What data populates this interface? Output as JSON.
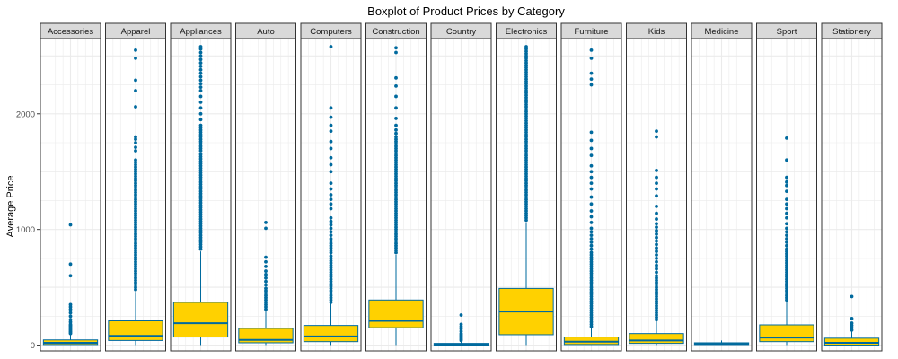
{
  "chart_data": {
    "type": "boxplot",
    "title": "Boxplot of Product Prices by Category",
    "xlabel": "",
    "ylabel": "Average Price",
    "ylim": [
      -50,
      2650
    ],
    "yticks": [
      0,
      1000,
      2000
    ],
    "grid": true,
    "facet_by": "category",
    "colors": {
      "box_fill": "#FFD100",
      "line": "#006A9E",
      "outlier": "#006A9E",
      "strip_bg": "#D9D9D9",
      "grid": "#EBEBEB"
    },
    "categories": [
      "Accessories",
      "Apparel",
      "Appliances",
      "Auto",
      "Computers",
      "Construction",
      "Country",
      "Electronics",
      "Furniture",
      "Kids",
      "Medicine",
      "Sport",
      "Stationery"
    ],
    "boxes": [
      {
        "category": "Accessories",
        "lower": 0,
        "q1": 5,
        "median": 20,
        "q3": 45,
        "upper": 90,
        "outliers": [
          100,
          110,
          120,
          130,
          140,
          150,
          160,
          170,
          180,
          200,
          220,
          250,
          280,
          310,
          330,
          350,
          600,
          700,
          1040
        ]
      },
      {
        "category": "Apparel",
        "lower": 0,
        "q1": 40,
        "median": 80,
        "q3": 210,
        "upper": 460,
        "outliers": [
          480,
          500,
          520,
          540,
          560,
          580,
          600,
          620,
          640,
          660,
          680,
          700,
          720,
          740,
          760,
          780,
          800,
          820,
          840,
          860,
          880,
          900,
          920,
          940,
          960,
          980,
          1000,
          1020,
          1040,
          1060,
          1080,
          1100,
          1120,
          1140,
          1160,
          1180,
          1200,
          1220,
          1240,
          1260,
          1280,
          1300,
          1320,
          1340,
          1360,
          1380,
          1400,
          1420,
          1440,
          1460,
          1480,
          1500,
          1520,
          1540,
          1560,
          1580,
          1600,
          1680,
          1710,
          1750,
          1780,
          1800,
          2060,
          2200,
          2290,
          2480,
          2550
        ]
      },
      {
        "category": "Appliances",
        "lower": 0,
        "q1": 70,
        "median": 190,
        "q3": 370,
        "upper": 810,
        "outliers": [
          830,
          850,
          870,
          890,
          910,
          930,
          950,
          970,
          990,
          1010,
          1030,
          1050,
          1070,
          1090,
          1110,
          1130,
          1150,
          1170,
          1190,
          1210,
          1230,
          1250,
          1270,
          1290,
          1310,
          1330,
          1350,
          1370,
          1390,
          1410,
          1430,
          1450,
          1470,
          1490,
          1510,
          1530,
          1550,
          1570,
          1590,
          1610,
          1630,
          1650,
          1680,
          1700,
          1720,
          1740,
          1760,
          1780,
          1800,
          1820,
          1840,
          1860,
          1880,
          1900,
          1950,
          2000,
          2050,
          2100,
          2150,
          2200,
          2230,
          2260,
          2290,
          2320,
          2350,
          2380,
          2410,
          2440,
          2470,
          2500,
          2530,
          2560,
          2580
        ]
      },
      {
        "category": "Auto",
        "lower": 0,
        "q1": 20,
        "median": 45,
        "q3": 145,
        "upper": 300,
        "outliers": [
          310,
          330,
          350,
          370,
          390,
          410,
          430,
          450,
          470,
          490,
          520,
          550,
          580,
          610,
          640,
          680,
          720,
          760,
          1010,
          1060
        ]
      },
      {
        "category": "Computers",
        "lower": 0,
        "q1": 30,
        "median": 75,
        "q3": 170,
        "upper": 360,
        "outliers": [
          370,
          390,
          410,
          430,
          450,
          470,
          490,
          510,
          530,
          550,
          570,
          590,
          610,
          630,
          650,
          670,
          690,
          710,
          730,
          750,
          770,
          800,
          820,
          840,
          860,
          880,
          900,
          920,
          950,
          980,
          1010,
          1040,
          1070,
          1100,
          1180,
          1220,
          1260,
          1300,
          1350,
          1400,
          1500,
          1560,
          1620,
          1700,
          1760,
          1850,
          1900,
          1970,
          2050,
          2580
        ]
      },
      {
        "category": "Construction",
        "lower": 0,
        "q1": 150,
        "median": 210,
        "q3": 390,
        "upper": 780,
        "outliers": [
          800,
          820,
          840,
          860,
          880,
          900,
          920,
          940,
          960,
          980,
          1000,
          1020,
          1040,
          1060,
          1080,
          1100,
          1120,
          1140,
          1160,
          1180,
          1200,
          1220,
          1240,
          1260,
          1280,
          1300,
          1320,
          1340,
          1360,
          1380,
          1400,
          1420,
          1440,
          1460,
          1480,
          1500,
          1520,
          1540,
          1560,
          1580,
          1600,
          1620,
          1640,
          1660,
          1680,
          1700,
          1720,
          1740,
          1760,
          1780,
          1800,
          1830,
          1860,
          1900,
          1960,
          2050,
          2150,
          2240,
          2310,
          2530,
          2570
        ]
      },
      {
        "category": "Country",
        "lower": 0,
        "q1": 0,
        "median": 5,
        "q3": 15,
        "upper": 30,
        "outliers": [
          40,
          50,
          60,
          70,
          80,
          90,
          100,
          120,
          140,
          160,
          180,
          260
        ]
      },
      {
        "category": "Electronics",
        "lower": 0,
        "q1": 90,
        "median": 290,
        "q3": 490,
        "upper": 1060,
        "outliers": [
          1080,
          1100,
          1120,
          1140,
          1160,
          1180,
          1200,
          1220,
          1240,
          1260,
          1280,
          1300,
          1320,
          1340,
          1360,
          1380,
          1400,
          1420,
          1440,
          1460,
          1480,
          1500,
          1520,
          1540,
          1560,
          1580,
          1600,
          1620,
          1640,
          1660,
          1680,
          1700,
          1720,
          1740,
          1760,
          1780,
          1800,
          1820,
          1840,
          1860,
          1880,
          1900,
          1920,
          1940,
          1960,
          1980,
          2000,
          2020,
          2040,
          2060,
          2080,
          2100,
          2120,
          2140,
          2160,
          2180,
          2200,
          2220,
          2240,
          2260,
          2280,
          2300,
          2320,
          2340,
          2360,
          2380,
          2400,
          2420,
          2440,
          2460,
          2480,
          2500,
          2520,
          2540,
          2560,
          2580
        ]
      },
      {
        "category": "Furniture",
        "lower": 0,
        "q1": 5,
        "median": 30,
        "q3": 70,
        "upper": 150,
        "outliers": [
          160,
          180,
          200,
          220,
          240,
          260,
          280,
          300,
          320,
          340,
          360,
          380,
          400,
          420,
          440,
          460,
          480,
          500,
          520,
          540,
          560,
          580,
          600,
          620,
          640,
          660,
          680,
          700,
          720,
          740,
          760,
          780,
          800,
          830,
          860,
          890,
          920,
          950,
          980,
          1010,
          1060,
          1110,
          1160,
          1220,
          1280,
          1350,
          1400,
          1450,
          1500,
          1550,
          1640,
          1700,
          1770,
          1840,
          2250,
          2300,
          2350,
          2480,
          2550
        ]
      },
      {
        "category": "Kids",
        "lower": 0,
        "q1": 15,
        "median": 40,
        "q3": 100,
        "upper": 210,
        "outliers": [
          220,
          240,
          260,
          280,
          300,
          320,
          340,
          360,
          380,
          400,
          420,
          440,
          460,
          480,
          500,
          520,
          540,
          560,
          580,
          600,
          630,
          660,
          690,
          720,
          750,
          780,
          810,
          840,
          870,
          900,
          930,
          960,
          990,
          1020,
          1050,
          1090,
          1140,
          1200,
          1290,
          1350,
          1400,
          1450,
          1510,
          1800,
          1850
        ]
      },
      {
        "category": "Medicine",
        "lower": 0,
        "q1": 5,
        "median": 10,
        "q3": 20,
        "upper": 40,
        "outliers": []
      },
      {
        "category": "Sport",
        "lower": 0,
        "q1": 30,
        "median": 65,
        "q3": 175,
        "upper": 380,
        "outliers": [
          390,
          410,
          430,
          450,
          470,
          490,
          510,
          530,
          550,
          570,
          590,
          610,
          630,
          650,
          670,
          690,
          710,
          730,
          750,
          770,
          790,
          810,
          830,
          860,
          890,
          920,
          950,
          980,
          1010,
          1050,
          1100,
          1140,
          1180,
          1220,
          1260,
          1330,
          1380,
          1410,
          1450,
          1600,
          1790
        ]
      },
      {
        "category": "Stationery",
        "lower": 0,
        "q1": 0,
        "median": 20,
        "q3": 60,
        "upper": 120,
        "outliers": [
          130,
          150,
          170,
          190,
          230,
          420
        ]
      }
    ]
  }
}
